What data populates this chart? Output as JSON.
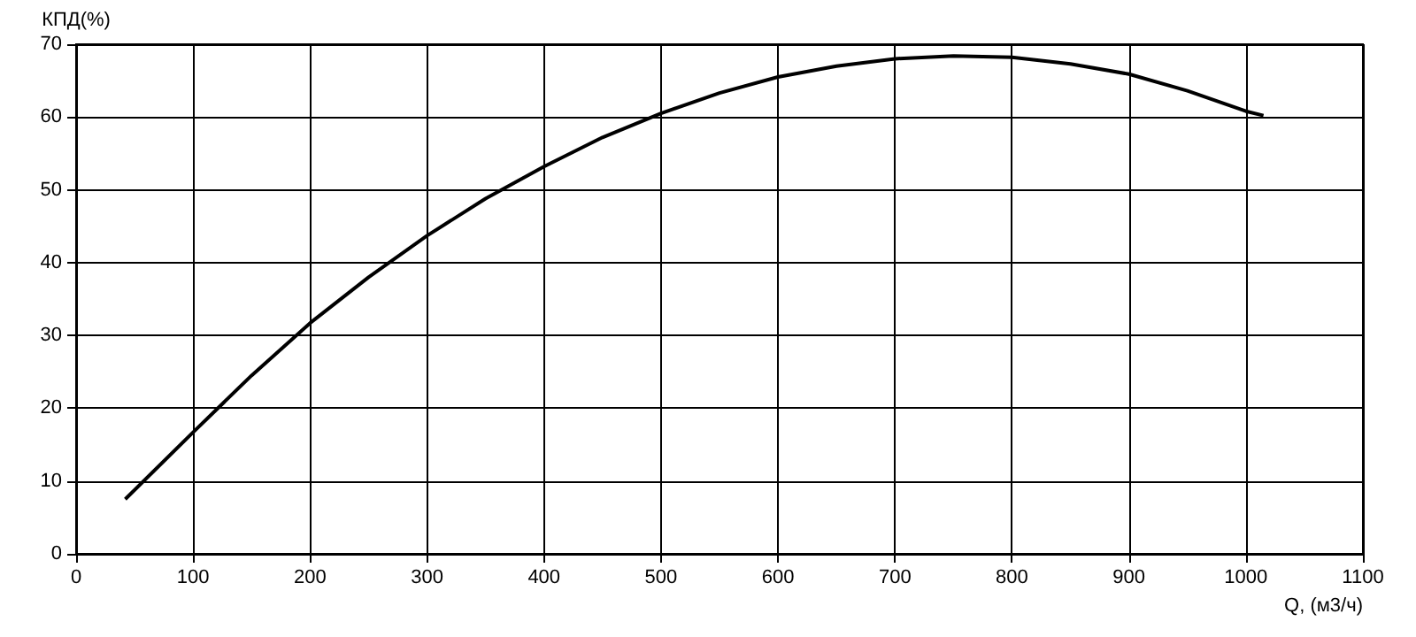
{
  "chart_data": {
    "type": "line",
    "xlabel": "Q, (м3/ч)",
    "ylabel": "КПД(%)",
    "x": [
      42,
      100,
      150,
      200,
      250,
      300,
      350,
      400,
      450,
      500,
      550,
      600,
      650,
      700,
      750,
      800,
      850,
      900,
      950,
      1000,
      1015
    ],
    "series": [
      {
        "color": "#000000",
        "values": [
          7.5,
          16.7,
          24.5,
          31.7,
          38,
          43.7,
          48.8,
          53.2,
          57.2,
          60.5,
          63.3,
          65.5,
          67,
          68,
          68.4,
          68.2,
          67.3,
          65.9,
          63.6,
          60.8,
          60.2
        ]
      }
    ],
    "xlim": [
      0,
      1100
    ],
    "xticks": [
      0,
      100,
      200,
      300,
      400,
      500,
      600,
      700,
      800,
      900,
      1000,
      1100
    ],
    "ylim": [
      0,
      70
    ],
    "yticks": [
      0,
      10,
      20,
      30,
      40,
      50,
      60,
      70
    ],
    "grid": true,
    "marker": "none",
    "line_style": "solid"
  }
}
